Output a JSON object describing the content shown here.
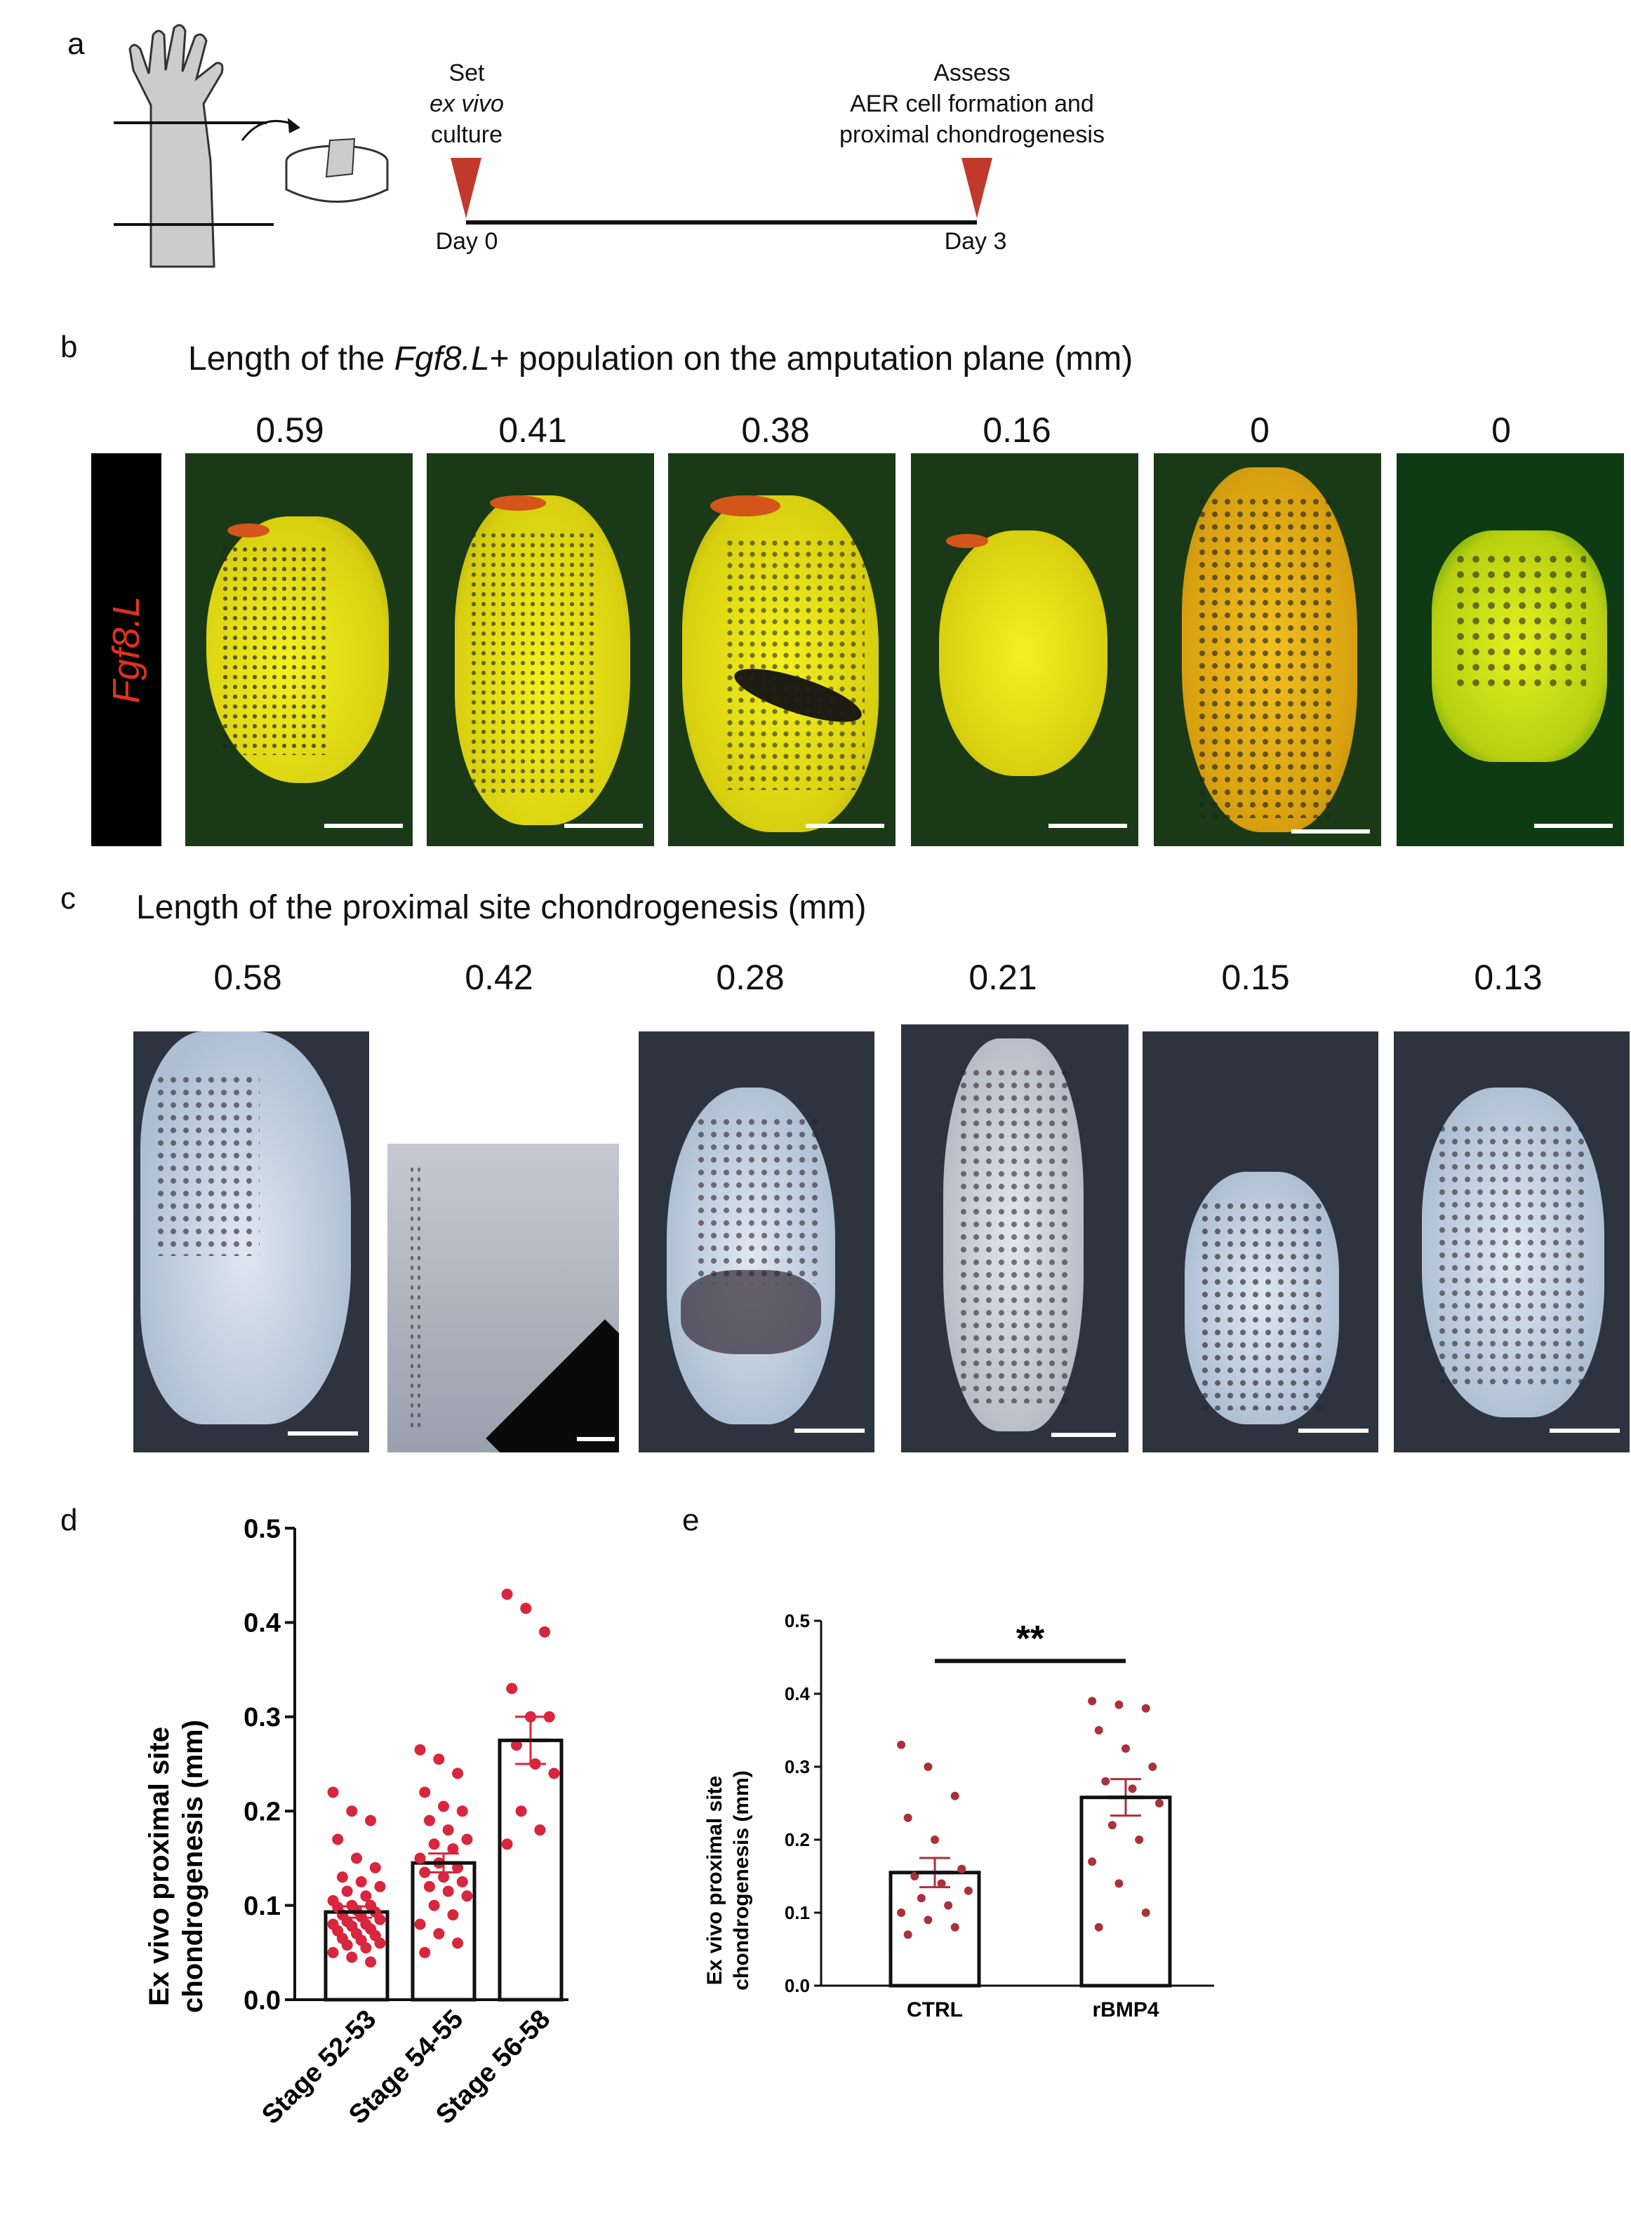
{
  "panel_a": {
    "letter": "a",
    "start_line1": "Set",
    "start_line2": "ex vivo",
    "start_line3": "culture",
    "end_line1": "Assess",
    "end_line2": "AER cell formation and",
    "end_line3": "proximal chondrogenesis",
    "day0": "Day 0",
    "day3": "Day 3",
    "marker_color": "#c0392b"
  },
  "panel_b": {
    "letter": "b",
    "title_pre": "Length of the ",
    "title_gene": "Fgf8.L",
    "title_post": "+ population on the amputation plane (mm)",
    "side_label": "Fgf8.L",
    "side_label_color": "#e0311f",
    "values": [
      "0.59",
      "0.41",
      "0.38",
      "0.16",
      "0",
      "0"
    ]
  },
  "panel_c": {
    "letter": "c",
    "title": "Length of the proximal site chondrogenesis (mm)",
    "values": [
      "0.58",
      "0.42",
      "0.28",
      "0.21",
      "0.15",
      "0.13"
    ]
  },
  "panel_d": {
    "letter": "d"
  },
  "panel_e": {
    "letter": "e"
  },
  "chart_data": [
    {
      "type": "bar",
      "panel": "d",
      "ylabel_line1": "Ex vivo proximal site",
      "ylabel_line2": "chondrogenesis (mm)",
      "ylim": [
        0,
        0.5
      ],
      "yticks": [
        "0.0",
        "0.1",
        "0.2",
        "0.3",
        "0.4",
        "0.5"
      ],
      "categories": [
        "Stage 52-53",
        "Stage 54-55",
        "Stage 56-58"
      ],
      "values": [
        0.093,
        0.145,
        0.275
      ],
      "sem": [
        0.006,
        0.01,
        0.025
      ],
      "points": [
        [
          0.22,
          0.2,
          0.19,
          0.17,
          0.15,
          0.14,
          0.13,
          0.125,
          0.12,
          0.115,
          0.11,
          0.105,
          0.1,
          0.1,
          0.098,
          0.095,
          0.093,
          0.09,
          0.088,
          0.085,
          0.083,
          0.08,
          0.08,
          0.078,
          0.075,
          0.073,
          0.07,
          0.068,
          0.065,
          0.063,
          0.06,
          0.058,
          0.055,
          0.05,
          0.045,
          0.04
        ],
        [
          0.265,
          0.255,
          0.24,
          0.22,
          0.205,
          0.2,
          0.19,
          0.18,
          0.17,
          0.165,
          0.16,
          0.15,
          0.145,
          0.14,
          0.135,
          0.13,
          0.125,
          0.12,
          0.115,
          0.11,
          0.1,
          0.09,
          0.08,
          0.07,
          0.06,
          0.05
        ],
        [
          0.43,
          0.415,
          0.39,
          0.33,
          0.3,
          0.3,
          0.27,
          0.25,
          0.24,
          0.2,
          0.18,
          0.165
        ]
      ],
      "point_color": "#d7263d"
    },
    {
      "type": "bar",
      "panel": "e",
      "ylabel_line1": "Ex vivo proximal site",
      "ylabel_line2": "chondrogenesis (mm)",
      "ylim": [
        0,
        0.5
      ],
      "yticks": [
        "0.0",
        "0.1",
        "0.2",
        "0.3",
        "0.4",
        "0.5"
      ],
      "categories": [
        "CTRL",
        "rBMP4"
      ],
      "values": [
        0.155,
        0.258
      ],
      "sem": [
        0.02,
        0.025
      ],
      "points": [
        [
          0.33,
          0.3,
          0.26,
          0.23,
          0.2,
          0.16,
          0.15,
          0.14,
          0.13,
          0.12,
          0.11,
          0.1,
          0.09,
          0.08,
          0.07
        ],
        [
          0.39,
          0.385,
          0.38,
          0.35,
          0.325,
          0.3,
          0.28,
          0.27,
          0.25,
          0.22,
          0.2,
          0.17,
          0.14,
          0.1,
          0.08
        ]
      ],
      "significance": "**",
      "point_color": "#a8323b"
    }
  ]
}
